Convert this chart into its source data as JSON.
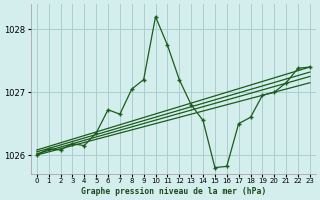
{
  "title": "Graphe pression niveau de la mer (hPa)",
  "bg_color": "#d4eeed",
  "grid_color": "#aacfcf",
  "line_color": "#1a5c1a",
  "xlim": [
    -0.5,
    23.5
  ],
  "ylim": [
    1025.7,
    1028.4
  ],
  "yticks": [
    1026,
    1027,
    1028
  ],
  "xticks": [
    0,
    1,
    2,
    3,
    4,
    5,
    6,
    7,
    8,
    9,
    10,
    11,
    12,
    13,
    14,
    15,
    16,
    17,
    18,
    19,
    20,
    21,
    22,
    23
  ],
  "main_x": [
    0,
    1,
    2,
    3,
    4,
    5,
    6,
    7,
    8,
    9,
    10,
    11,
    12,
    13,
    14,
    15,
    16,
    17,
    18,
    19,
    20,
    21,
    22,
    23
  ],
  "main_y": [
    1026.0,
    1026.1,
    1026.08,
    1026.18,
    1026.15,
    1026.35,
    1026.72,
    1026.65,
    1027.05,
    1027.2,
    1028.2,
    1027.75,
    1027.2,
    1026.8,
    1026.55,
    1025.8,
    1025.82,
    1026.5,
    1026.6,
    1026.95,
    1027.0,
    1027.15,
    1027.38,
    1027.4
  ],
  "reg_lines": [
    {
      "x0": 0,
      "y0": 1026.0,
      "x1": 23,
      "y1": 1027.15
    },
    {
      "x0": 0,
      "y0": 1026.02,
      "x1": 23,
      "y1": 1027.25
    },
    {
      "x0": 0,
      "y0": 1026.05,
      "x1": 23,
      "y1": 1027.32
    },
    {
      "x0": 0,
      "y0": 1026.08,
      "x1": 23,
      "y1": 1027.4
    }
  ]
}
